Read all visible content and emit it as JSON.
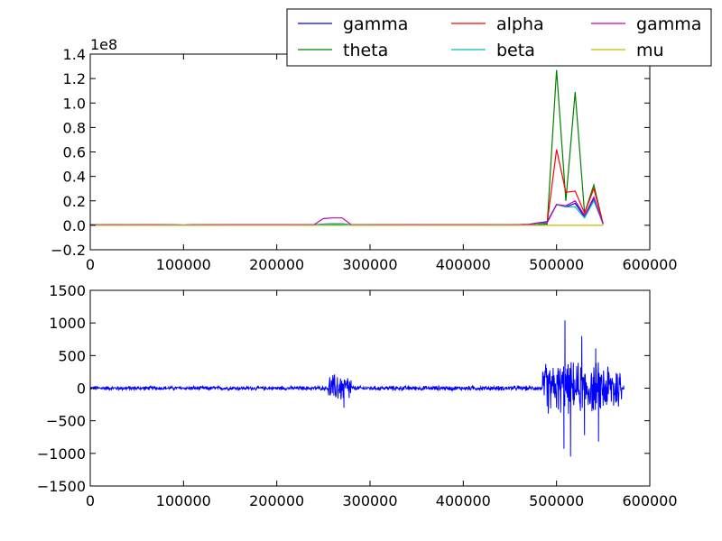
{
  "chart_data": [
    {
      "type": "line",
      "title": "",
      "xlabel": "",
      "ylabel": "",
      "xlim": [
        0,
        600000
      ],
      "ylim": [
        -0.2,
        1.4
      ],
      "y_offset_label": "1e8",
      "y_scale": 100000000,
      "xticks": [
        0,
        100000,
        200000,
        300000,
        400000,
        500000,
        600000
      ],
      "xtick_labels": [
        "0",
        "100000",
        "200000",
        "300000",
        "400000",
        "500000",
        "600000"
      ],
      "yticks": [
        -0.2,
        0.0,
        0.2,
        0.4,
        0.6,
        0.8,
        1.0,
        1.2,
        1.4
      ],
      "ytick_labels": [
        "−0.2",
        "0.0",
        "0.2",
        "0.4",
        "0.6",
        "0.8",
        "1.0",
        "1.2",
        "1.4"
      ],
      "grid": false,
      "legend": "top-right, outside plot, 3 columns",
      "x": [
        0,
        10000,
        20000,
        30000,
        40000,
        50000,
        60000,
        70000,
        80000,
        90000,
        100000,
        110000,
        120000,
        130000,
        140000,
        150000,
        160000,
        170000,
        180000,
        190000,
        200000,
        210000,
        220000,
        230000,
        240000,
        250000,
        260000,
        270000,
        280000,
        290000,
        300000,
        310000,
        320000,
        330000,
        340000,
        350000,
        360000,
        370000,
        380000,
        390000,
        400000,
        410000,
        420000,
        430000,
        440000,
        450000,
        460000,
        470000,
        480000,
        490000,
        500000,
        510000,
        520000,
        530000,
        540000,
        550000
      ],
      "series": [
        {
          "name": "gamma",
          "color": "#0000ff",
          "values": [
            0.005,
            0.003,
            0.004,
            0.004,
            0.003,
            0.005,
            0.004,
            0.004,
            0.004,
            0.003,
            0.002,
            0.004,
            0.004,
            0.005,
            0.005,
            0.006,
            0.006,
            0.006,
            0.006,
            0.006,
            0.006,
            0.006,
            0.005,
            0.005,
            0.004,
            0.01,
            0.012,
            0.012,
            0.004,
            0.004,
            0.004,
            0.005,
            0.005,
            0.005,
            0.006,
            0.006,
            0.005,
            0.005,
            0.005,
            0.005,
            0.005,
            0.005,
            0.005,
            0.004,
            0.004,
            0.004,
            0.006,
            0.007,
            0.02,
            0.03,
            0.17,
            0.15,
            0.18,
            0.07,
            0.22,
            0.01
          ]
        },
        {
          "name": "theta",
          "color": "#008000",
          "values": [
            0.003,
            0.002,
            0.003,
            0.003,
            0.002,
            0.003,
            0.003,
            0.003,
            0.002,
            0.002,
            0.001,
            0.002,
            0.002,
            0.003,
            0.003,
            0.003,
            0.003,
            0.003,
            0.003,
            0.003,
            0.003,
            0.003,
            0.003,
            0.003,
            0.002,
            0.005,
            0.006,
            0.008,
            0.002,
            0.002,
            0.002,
            0.003,
            0.003,
            0.003,
            0.003,
            0.003,
            0.003,
            0.003,
            0.003,
            0.003,
            0.003,
            0.003,
            0.003,
            0.002,
            0.002,
            0.002,
            0.003,
            0.004,
            0.005,
            0.01,
            1.27,
            0.2,
            1.09,
            0.1,
            0.33,
            0.01
          ]
        },
        {
          "name": "alpha",
          "color": "#ff0000",
          "values": [
            0.004,
            0.003,
            0.004,
            0.004,
            0.003,
            0.004,
            0.004,
            0.004,
            0.003,
            0.003,
            0.002,
            0.003,
            0.003,
            0.004,
            0.004,
            0.005,
            0.005,
            0.005,
            0.005,
            0.005,
            0.005,
            0.005,
            0.004,
            0.004,
            0.003,
            0.008,
            0.01,
            0.01,
            0.003,
            0.003,
            0.003,
            0.004,
            0.004,
            0.004,
            0.005,
            0.005,
            0.004,
            0.004,
            0.004,
            0.004,
            0.004,
            0.004,
            0.004,
            0.003,
            0.003,
            0.003,
            0.005,
            0.006,
            0.015,
            0.02,
            0.62,
            0.27,
            0.28,
            0.1,
            0.3,
            0.01
          ]
        },
        {
          "name": "beta",
          "color": "#00bfbf",
          "values": [
            0.004,
            0.003,
            0.004,
            0.004,
            0.003,
            0.004,
            0.004,
            0.004,
            0.003,
            0.003,
            0.002,
            0.003,
            0.003,
            0.004,
            0.004,
            0.005,
            0.005,
            0.005,
            0.005,
            0.005,
            0.005,
            0.005,
            0.004,
            0.004,
            0.003,
            0.009,
            0.011,
            0.011,
            0.003,
            0.003,
            0.003,
            0.004,
            0.004,
            0.004,
            0.005,
            0.005,
            0.004,
            0.004,
            0.004,
            0.004,
            0.004,
            0.004,
            0.004,
            0.003,
            0.003,
            0.003,
            0.005,
            0.006,
            0.015,
            0.02,
            0.17,
            0.15,
            0.15,
            0.06,
            0.2,
            0.01
          ]
        },
        {
          "name": "gamma",
          "color": "#bf00bf",
          "values": [
            0.005,
            0.004,
            0.005,
            0.005,
            0.004,
            0.005,
            0.005,
            0.005,
            0.004,
            0.004,
            0.003,
            0.004,
            0.004,
            0.005,
            0.005,
            0.006,
            0.006,
            0.006,
            0.006,
            0.006,
            0.006,
            0.006,
            0.005,
            0.005,
            0.004,
            0.055,
            0.06,
            0.06,
            0.004,
            0.004,
            0.004,
            0.005,
            0.005,
            0.005,
            0.006,
            0.006,
            0.005,
            0.005,
            0.005,
            0.005,
            0.005,
            0.005,
            0.005,
            0.004,
            0.004,
            0.004,
            0.006,
            0.007,
            0.02,
            0.025,
            0.17,
            0.16,
            0.2,
            0.08,
            0.23,
            0.01
          ]
        },
        {
          "name": "mu",
          "color": "#bfbf00",
          "values": [
            0,
            0,
            0,
            0,
            0,
            0,
            0,
            0,
            0,
            0,
            0,
            0,
            0,
            0,
            0,
            0,
            0,
            0,
            0,
            0,
            0,
            0,
            0,
            0,
            0,
            0,
            0,
            0,
            0,
            0,
            0,
            0,
            0,
            0,
            0,
            0,
            0,
            0,
            0,
            0,
            0,
            0,
            0,
            0,
            0,
            0,
            0,
            0,
            0,
            0,
            0,
            0,
            0,
            0,
            0,
            0
          ]
        }
      ]
    },
    {
      "type": "line",
      "title": "",
      "xlabel": "",
      "ylabel": "",
      "xlim": [
        0,
        600000
      ],
      "ylim": [
        -1500,
        1500
      ],
      "xticks": [
        0,
        100000,
        200000,
        300000,
        400000,
        500000,
        600000
      ],
      "xtick_labels": [
        "0",
        "100000",
        "200000",
        "300000",
        "400000",
        "500000",
        "600000"
      ],
      "yticks": [
        -1500,
        -1000,
        -500,
        0,
        500,
        1000,
        1500
      ],
      "ytick_labels": [
        "−1500",
        "−1000",
        "−500",
        "0",
        "500",
        "1000",
        "1500"
      ],
      "grid": false,
      "series": [
        {
          "color": "#0000ff",
          "envelope": [
            {
              "x": [
                0,
                255000
              ],
              "amplitude": 35
            },
            {
              "x": [
                255000,
                280000
              ],
              "amplitude": 250
            },
            {
              "x": [
                280000,
                485000
              ],
              "amplitude": 40
            },
            {
              "x": [
                485000,
                570000
              ],
              "amplitude": 450
            }
          ],
          "peaks": [
            {
              "x": 265000,
              "y": 170
            },
            {
              "x": 272000,
              "y": -300
            },
            {
              "x": 490000,
              "y": -280
            },
            {
              "x": 509000,
              "y": 1040
            },
            {
              "x": 508000,
              "y": -930
            },
            {
              "x": 515000,
              "y": -1050
            },
            {
              "x": 527000,
              "y": 800
            },
            {
              "x": 530000,
              "y": -720
            },
            {
              "x": 542000,
              "y": 610
            },
            {
              "x": 545000,
              "y": -820
            },
            {
              "x": 555000,
              "y": 330
            },
            {
              "x": 572000,
              "y": 40
            }
          ]
        }
      ]
    }
  ]
}
